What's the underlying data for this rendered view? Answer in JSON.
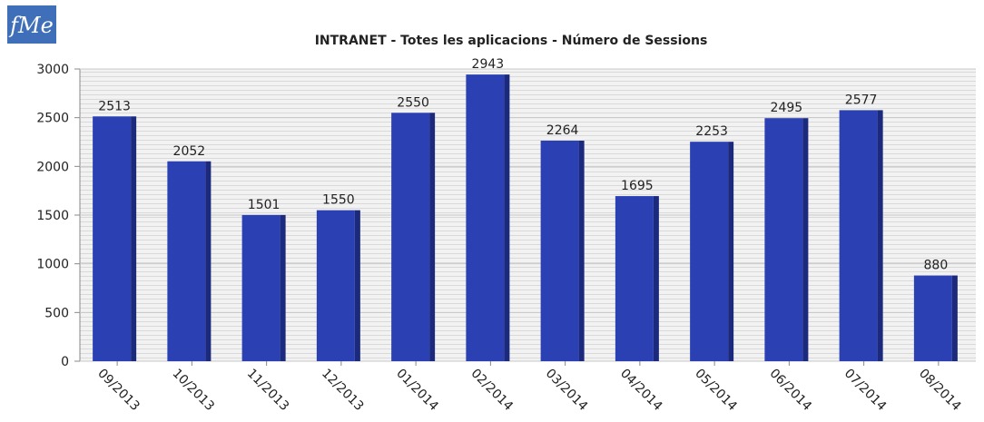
{
  "logo": "fMe",
  "chart_data": {
    "type": "bar",
    "title": "INTRANET - Totes les aplicacions  - Número de Sessions",
    "categories": [
      "09/2013",
      "10/2013",
      "11/2013",
      "12/2013",
      "01/2014",
      "02/2014",
      "03/2014",
      "04/2014",
      "05/2014",
      "06/2014",
      "07/2014",
      "08/2014"
    ],
    "values": [
      2513,
      2052,
      1501,
      1550,
      2550,
      2943,
      2264,
      1695,
      2253,
      2495,
      2577,
      880
    ],
    "color": "#2b41b3",
    "ylim": [
      0,
      3000
    ],
    "yticks": [
      0,
      500,
      1000,
      1500,
      2000,
      2500,
      3000
    ],
    "grid": true
  }
}
